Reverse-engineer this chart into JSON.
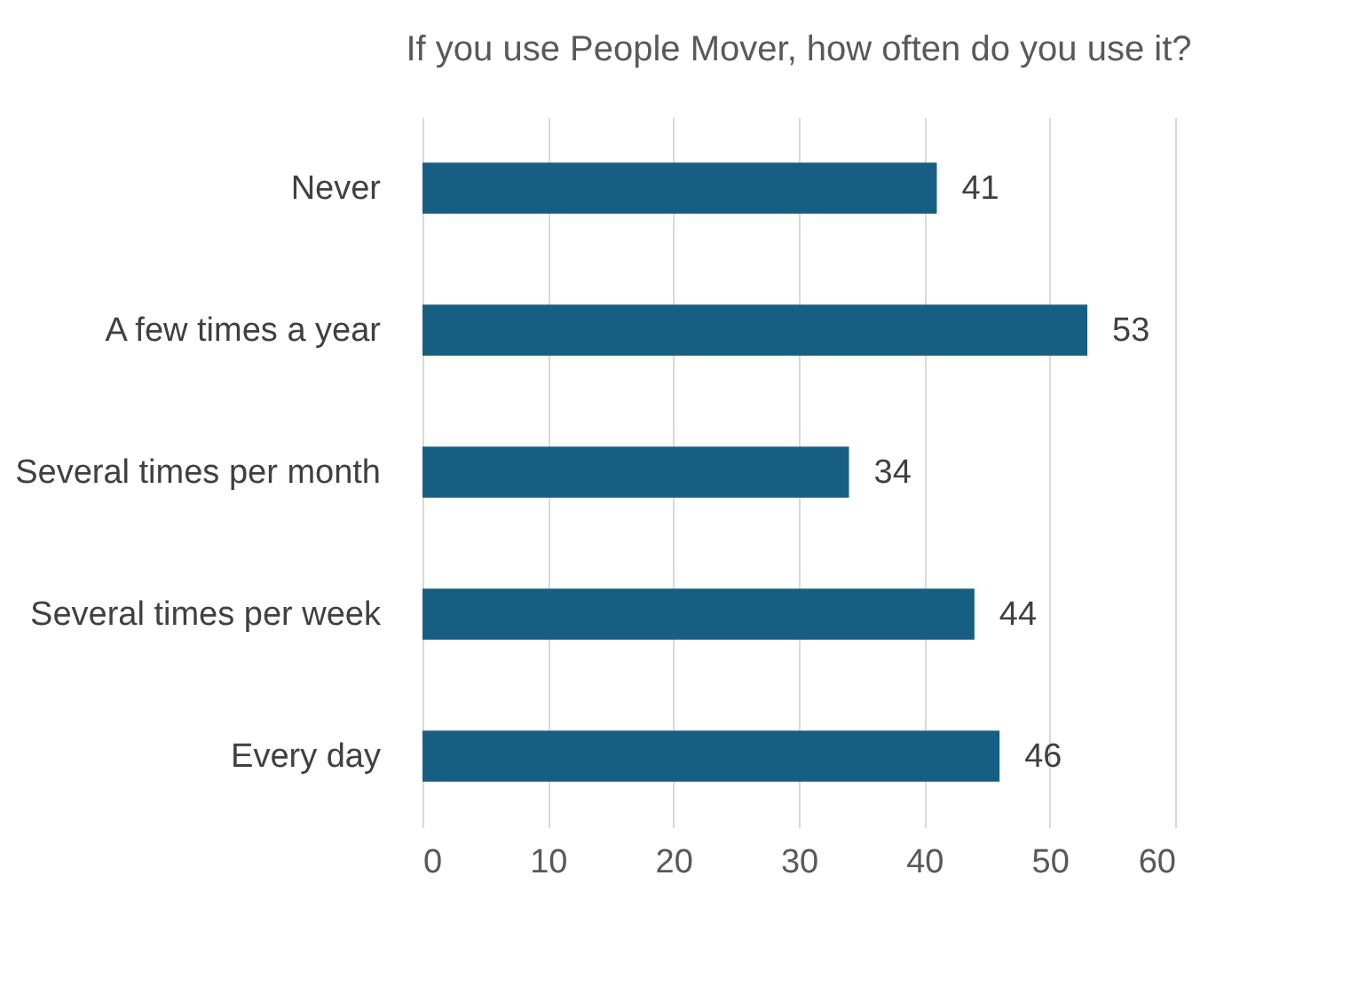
{
  "chart_data": {
    "type": "bar",
    "orientation": "horizontal",
    "title": "If you use People Mover, how often do you use it?",
    "categories": [
      "Never",
      "A few times a year",
      "Several times per month",
      "Several times per week",
      "Every day"
    ],
    "values": [
      41,
      53,
      34,
      44,
      46
    ],
    "color": "#175f82",
    "xlim": [
      0,
      60
    ],
    "xticks": [
      0,
      10,
      20,
      30,
      40,
      50,
      60
    ],
    "grid": "x",
    "data_labels": true
  }
}
